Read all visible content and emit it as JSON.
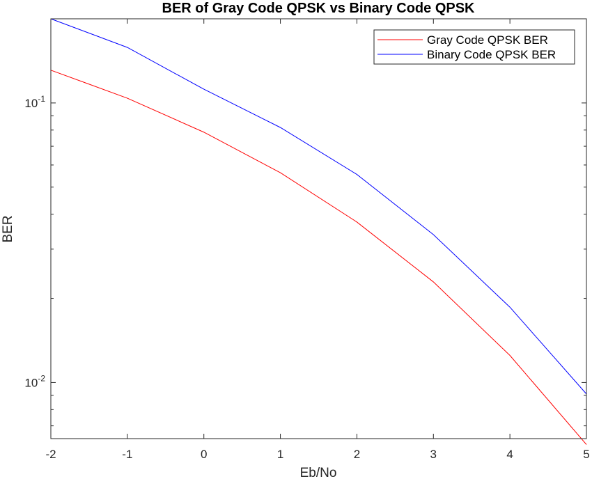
{
  "chart_data": {
    "type": "line",
    "title": "BER of Gray Code QPSK vs Binary Code QPSK",
    "xlabel": "Eb/No",
    "ylabel": "BER",
    "x": [
      -2,
      -1,
      0,
      1,
      2,
      3,
      4,
      5
    ],
    "xlim": [
      -2,
      5
    ],
    "ylim": [
      0.0063,
      0.2
    ],
    "yscale": "log",
    "x_ticks": [
      "-2",
      "-1",
      "0",
      "1",
      "2",
      "3",
      "4",
      "5"
    ],
    "y_ticks": [
      {
        "value": 0.1,
        "base": "10",
        "exponent": "-1"
      },
      {
        "value": 0.01,
        "base": "10",
        "exponent": "-2"
      }
    ],
    "grid": false,
    "legend_position": "top-right",
    "series": [
      {
        "name": "Gray Code QPSK BER",
        "color": "#ff0000",
        "values": [
          0.131,
          0.104,
          0.0786,
          0.0563,
          0.0375,
          0.0229,
          0.0125,
          0.006
        ]
      },
      {
        "name": "Binary Code QPSK BER",
        "color": "#0000ff",
        "values": [
          0.2,
          0.158,
          0.112,
          0.0817,
          0.0555,
          0.0338,
          0.0186,
          0.0091
        ]
      }
    ]
  }
}
